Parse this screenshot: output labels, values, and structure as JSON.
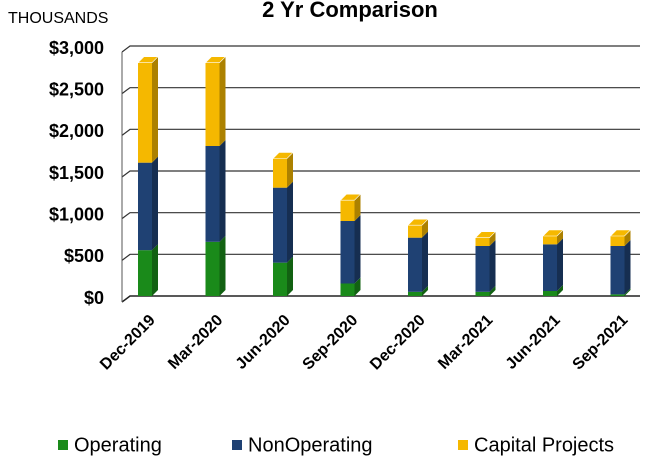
{
  "chart_data": {
    "type": "stacked_bar_3d",
    "title": "2 Yr Comparison",
    "y_axis_label": "THOUSANDS",
    "categories": [
      "Dec-2019",
      "Mar-2020",
      "Jun-2020",
      "Sep-2020",
      "Dec-2020",
      "Mar-2021",
      "Jun-2021",
      "Sep-2021"
    ],
    "series": [
      {
        "name": "Operating",
        "color": "#1a8a1a",
        "values": [
          550,
          650,
          400,
          150,
          50,
          50,
          60,
          20
        ]
      },
      {
        "name": "NonOperating",
        "color": "#1f4173",
        "values": [
          1050,
          1150,
          900,
          750,
          650,
          550,
          560,
          580
        ]
      },
      {
        "name": "Capital Projects",
        "color": "#f5b800",
        "values": [
          1200,
          1000,
          350,
          250,
          150,
          100,
          100,
          120
        ]
      }
    ],
    "ylim": [
      0,
      3000
    ],
    "yticks": [
      {
        "value": 0,
        "label": "$0"
      },
      {
        "value": 500,
        "label": "$500"
      },
      {
        "value": 1000,
        "label": "$1,000"
      },
      {
        "value": 1500,
        "label": "$1,500"
      },
      {
        "value": 2000,
        "label": "$2,000"
      },
      {
        "value": 2500,
        "label": "$2,500"
      },
      {
        "value": 3000,
        "label": "$3,000"
      }
    ],
    "grid": true,
    "legend": "bottom"
  }
}
